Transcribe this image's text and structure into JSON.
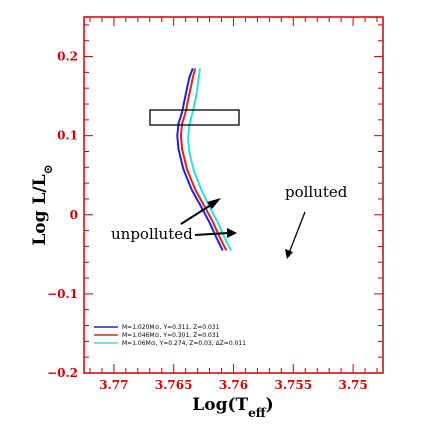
{
  "chart_data": {
    "type": "line",
    "title": "",
    "xlabel": "Log(T",
    "xlabel_sub": "eff",
    "xlabel_close": ")",
    "ylabel": "Log L/L",
    "ylabel_sub": "⊙",
    "xlim": [
      3.7725,
      3.7475
    ],
    "ylim": [
      -0.2,
      0.25
    ],
    "x_ticks": [
      3.77,
      3.765,
      3.76,
      3.755,
      3.75
    ],
    "x_tick_labels": [
      "3.77",
      "3.765",
      "3.76",
      "3.755",
      "3.75"
    ],
    "y_ticks": [
      0.2,
      0.1,
      0,
      -0.1,
      -0.2
    ],
    "y_tick_labels": [
      "0.2",
      "0.1",
      "0",
      "−0.1",
      "−0.2"
    ],
    "legend_position": "bottom-left",
    "colors": {
      "frame": "#cc0000",
      "series": [
        "#2222cc",
        "#dd2222",
        "#33dddd"
      ]
    },
    "series": [
      {
        "name": "M=1.020M⊙, Y=0.311, Z=0.031",
        "color": "#2222cc",
        "points": [
          [
            3.7609,
            -0.045
          ],
          [
            3.7614,
            -0.03
          ],
          [
            3.762,
            -0.01
          ],
          [
            3.7627,
            0.01
          ],
          [
            3.7635,
            0.032
          ],
          [
            3.7642,
            0.058
          ],
          [
            3.7646,
            0.083
          ],
          [
            3.7647,
            0.1
          ],
          [
            3.7646,
            0.115
          ],
          [
            3.7643,
            0.13
          ],
          [
            3.764,
            0.152
          ],
          [
            3.7637,
            0.173
          ],
          [
            3.7634,
            0.185
          ]
        ]
      },
      {
        "name": "M=1.046M⊙, Y=0.301, Z=0.031",
        "color": "#dd2222",
        "points": [
          [
            3.7606,
            -0.045
          ],
          [
            3.7611,
            -0.03
          ],
          [
            3.7617,
            -0.01
          ],
          [
            3.7624,
            0.01
          ],
          [
            3.7632,
            0.032
          ],
          [
            3.7639,
            0.058
          ],
          [
            3.7643,
            0.083
          ],
          [
            3.7644,
            0.1
          ],
          [
            3.7643,
            0.115
          ],
          [
            3.764,
            0.13
          ],
          [
            3.7637,
            0.152
          ],
          [
            3.7634,
            0.173
          ],
          [
            3.7632,
            0.185
          ]
        ]
      },
      {
        "name": "M=1.06M⊙, Y=0.274, Z=0.03, ΔZ=0.011",
        "color": "#33dddd",
        "points": [
          [
            3.7602,
            -0.045
          ],
          [
            3.7607,
            -0.03
          ],
          [
            3.7613,
            -0.01
          ],
          [
            3.762,
            0.01
          ],
          [
            3.7627,
            0.032
          ],
          [
            3.7633,
            0.055
          ],
          [
            3.7637,
            0.08
          ],
          [
            3.7638,
            0.097
          ],
          [
            3.7637,
            0.113
          ],
          [
            3.7634,
            0.13
          ],
          [
            3.7631,
            0.152
          ],
          [
            3.7629,
            0.173
          ],
          [
            3.7628,
            0.185
          ]
        ]
      }
    ],
    "annotations": [
      {
        "text": "polluted"
      },
      {
        "text": "unpolluted"
      }
    ]
  }
}
